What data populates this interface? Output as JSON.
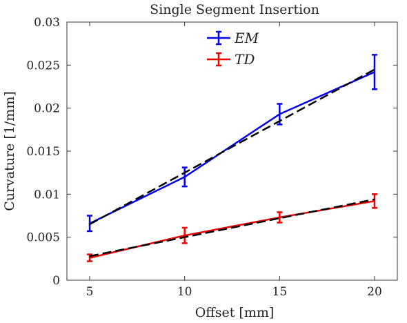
{
  "chart_data": {
    "type": "line",
    "title": "Single Segment Insertion",
    "xlabel": "Offset [mm]",
    "ylabel": "Curvature [1/mm]",
    "xlim": [
      3.8,
      21.2
    ],
    "ylim": [
      0,
      0.03
    ],
    "xticks": [
      5,
      10,
      15,
      20
    ],
    "yticks": [
      0,
      0.005,
      0.01,
      0.015,
      0.02,
      0.025,
      0.03
    ],
    "xtick_labels": [
      "5",
      "10",
      "15",
      "20"
    ],
    "ytick_labels": [
      "0",
      "0.005",
      "0.01",
      "0.015",
      "0.02",
      "0.025",
      "0.03"
    ],
    "x": [
      5,
      10,
      15,
      20
    ],
    "legend_position": "top-center",
    "grid": false,
    "series": [
      {
        "name": "EM",
        "color": "#0000ee",
        "values": [
          0.0066,
          0.012,
          0.0193,
          0.0242
        ],
        "errors": [
          0.0009,
          0.0011,
          0.0012,
          0.002
        ],
        "show_in_legend": true
      },
      {
        "name": "TD",
        "color": "#ee0000",
        "values": [
          0.0026,
          0.0052,
          0.0073,
          0.0092
        ],
        "errors": [
          0.0004,
          0.0009,
          0.0006,
          0.0008
        ],
        "show_in_legend": true
      },
      {
        "name": "",
        "color": "#000000",
        "dashed": true,
        "values": [
          0.0065,
          0.0125,
          0.0185,
          0.0245
        ],
        "show_in_legend": false
      },
      {
        "name": "",
        "color": "#000000",
        "dashed": true,
        "values": [
          0.0028,
          0.005,
          0.0072,
          0.0094
        ],
        "show_in_legend": false
      }
    ]
  }
}
